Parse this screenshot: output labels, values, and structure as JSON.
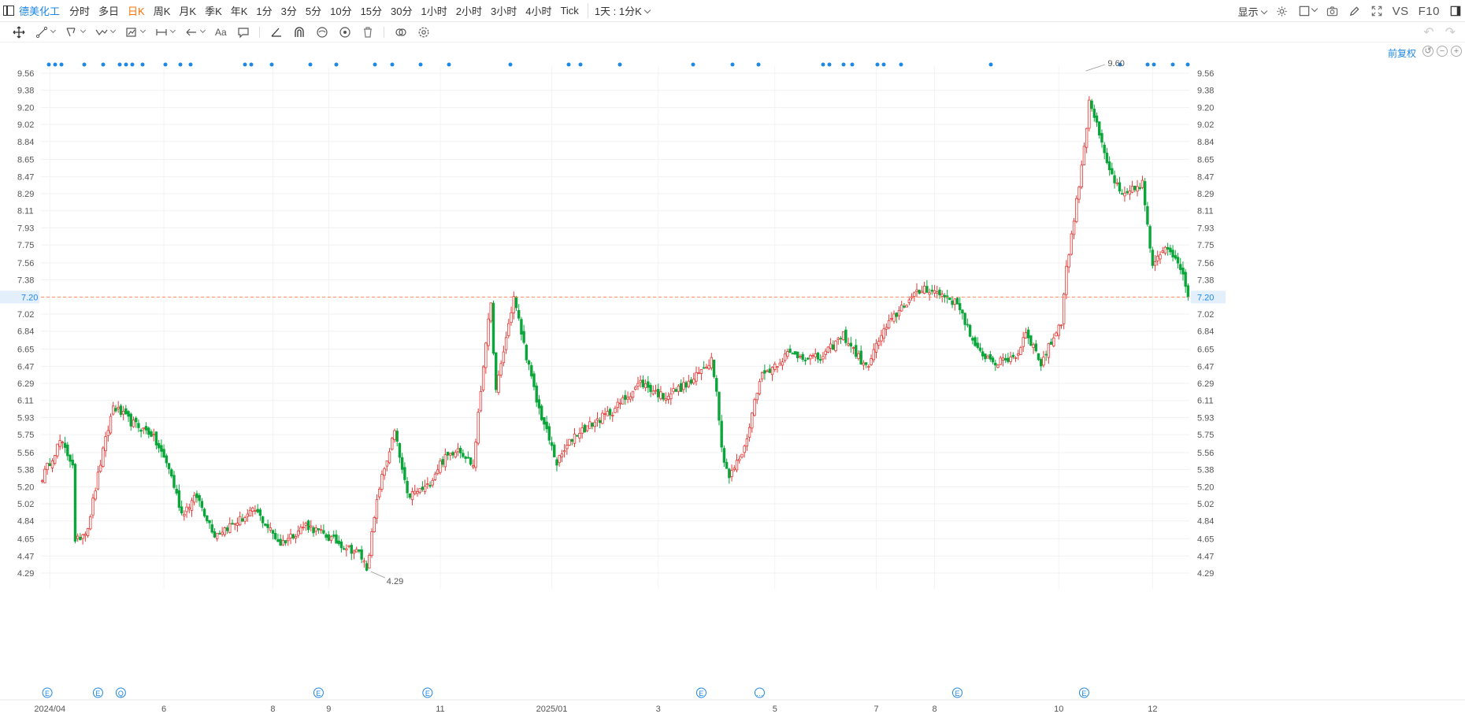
{
  "topbar": {
    "stock_name": "德美化工",
    "period_tabs": [
      "分时",
      "多日",
      "日K",
      "周K",
      "月K",
      "季K",
      "年K",
      "1分",
      "3分",
      "5分",
      "10分",
      "15分",
      "30分",
      "1小时",
      "2小时",
      "3小时",
      "4小时",
      "Tick"
    ],
    "active_tab": "日K",
    "interval_select": "1天 : 1分K",
    "display_label": "显示",
    "vs_label": "VS",
    "f10_label": "F10"
  },
  "adjust_label": "前复权",
  "colors": {
    "up": "#e53935",
    "down": "#0aa63a",
    "accent": "#1e88e5",
    "price_line": "#ff8a65",
    "active_tab": "#ff6f00"
  },
  "chart_data": {
    "type": "candlestick",
    "y_ticks": [
      "9.56",
      "9.38",
      "9.20",
      "9.02",
      "8.84",
      "8.65",
      "8.47",
      "8.29",
      "8.11",
      "7.93",
      "7.75",
      "7.56",
      "7.38",
      "7.20",
      "7.02",
      "6.84",
      "6.65",
      "6.47",
      "6.29",
      "6.11",
      "5.93",
      "5.75",
      "5.56",
      "5.38",
      "5.20",
      "5.02",
      "4.84",
      "4.65",
      "4.47",
      "4.29"
    ],
    "ylim": [
      4.17,
      9.72
    ],
    "x_ticks": [
      "2024/04",
      "6",
      "8",
      "9",
      "11",
      "2025/01",
      "3",
      "5",
      "7",
      "8",
      "10",
      "12"
    ],
    "current_price": "7.20",
    "max_label": "9.60",
    "min_label": "4.29",
    "event_markers": [
      "E",
      "E",
      "Q",
      "E",
      "E",
      "E",
      "…",
      "E",
      "E"
    ],
    "anchors": [
      {
        "d": "2024-03-27",
        "c": 5.3
      },
      {
        "d": "2024-04-05",
        "c": 5.68
      },
      {
        "d": "2024-04-12",
        "c": 5.45
      },
      {
        "d": "2024-04-15",
        "c": 4.6
      },
      {
        "d": "2024-04-22",
        "c": 4.78
      },
      {
        "d": "2024-04-29",
        "c": 5.45
      },
      {
        "d": "2024-05-06",
        "c": 6.05
      },
      {
        "d": "2024-05-15",
        "c": 5.88
      },
      {
        "d": "2024-05-27",
        "c": 5.76
      },
      {
        "d": "2024-06-05",
        "c": 5.4
      },
      {
        "d": "2024-06-12",
        "c": 4.92
      },
      {
        "d": "2024-06-20",
        "c": 5.1
      },
      {
        "d": "2024-07-01",
        "c": 4.7
      },
      {
        "d": "2024-07-15",
        "c": 4.85
      },
      {
        "d": "2024-07-23",
        "c": 4.95
      },
      {
        "d": "2024-08-06",
        "c": 4.6
      },
      {
        "d": "2024-08-20",
        "c": 4.8
      },
      {
        "d": "2024-09-05",
        "c": 4.62
      },
      {
        "d": "2024-09-18",
        "c": 4.5
      },
      {
        "d": "2024-09-23",
        "c": 4.35
      },
      {
        "d": "2024-09-30",
        "c": 5.2
      },
      {
        "d": "2024-10-08",
        "c": 5.78
      },
      {
        "d": "2024-10-15",
        "c": 5.1
      },
      {
        "d": "2024-10-25",
        "c": 5.2
      },
      {
        "d": "2024-11-01",
        "c": 5.45
      },
      {
        "d": "2024-11-12",
        "c": 5.62
      },
      {
        "d": "2024-11-20",
        "c": 5.42
      },
      {
        "d": "2024-11-27",
        "c": 6.75
      },
      {
        "d": "2024-11-29",
        "c": 7.1
      },
      {
        "d": "2024-12-03",
        "c": 6.2
      },
      {
        "d": "2024-12-12",
        "c": 7.2
      },
      {
        "d": "2024-12-18",
        "c": 6.7
      },
      {
        "d": "2024-12-25",
        "c": 6.1
      },
      {
        "d": "2025-01-06",
        "c": 5.45
      },
      {
        "d": "2025-01-15",
        "c": 5.75
      },
      {
        "d": "2025-02-05",
        "c": 6.0
      },
      {
        "d": "2025-02-20",
        "c": 6.3
      },
      {
        "d": "2025-03-05",
        "c": 6.15
      },
      {
        "d": "2025-03-20",
        "c": 6.3
      },
      {
        "d": "2025-04-01",
        "c": 6.55
      },
      {
        "d": "2025-04-03",
        "c": 6.25
      },
      {
        "d": "2025-04-07",
        "c": 5.6
      },
      {
        "d": "2025-04-10",
        "c": 5.3
      },
      {
        "d": "2025-04-18",
        "c": 5.6
      },
      {
        "d": "2025-04-28",
        "c": 6.35
      },
      {
        "d": "2025-05-13",
        "c": 6.6
      },
      {
        "d": "2025-05-30",
        "c": 6.55
      },
      {
        "d": "2025-06-12",
        "c": 6.8
      },
      {
        "d": "2025-06-25",
        "c": 6.45
      },
      {
        "d": "2025-07-03",
        "c": 6.8
      },
      {
        "d": "2025-07-15",
        "c": 7.1
      },
      {
        "d": "2025-07-28",
        "c": 7.3
      },
      {
        "d": "2025-08-08",
        "c": 7.2
      },
      {
        "d": "2025-08-15",
        "c": 7.1
      },
      {
        "d": "2025-08-25",
        "c": 6.65
      },
      {
        "d": "2025-09-05",
        "c": 6.5
      },
      {
        "d": "2025-09-17",
        "c": 6.6
      },
      {
        "d": "2025-09-22",
        "c": 6.85
      },
      {
        "d": "2025-09-30",
        "c": 6.5
      },
      {
        "d": "2025-10-10",
        "c": 6.95
      },
      {
        "d": "2025-10-14",
        "c": 7.5
      },
      {
        "d": "2025-10-20",
        "c": 8.2
      },
      {
        "d": "2025-10-24",
        "c": 9.0
      },
      {
        "d": "2025-10-27",
        "c": 9.3
      },
      {
        "d": "2025-11-05",
        "c": 8.6
      },
      {
        "d": "2025-11-13",
        "c": 8.25
      },
      {
        "d": "2025-11-25",
        "c": 8.4
      },
      {
        "d": "2025-12-01",
        "c": 7.5
      },
      {
        "d": "2025-12-08",
        "c": 7.75
      },
      {
        "d": "2025-12-15",
        "c": 7.6
      },
      {
        "d": "2025-12-19",
        "c": 7.2
      }
    ],
    "x_tick_dates": [
      "2024-04-01",
      "2024-06-03",
      "2024-08-01",
      "2024-09-02",
      "2024-11-01",
      "2025-01-02",
      "2025-03-03",
      "2025-05-06",
      "2025-07-01",
      "2025-08-01",
      "2025-10-09",
      "2025-12-01"
    ],
    "event_marker_dates": [
      "2024-03-29",
      "2024-04-26",
      "2024-05-09",
      "2024-08-27",
      "2024-10-25",
      "2025-03-26",
      "2025-04-28",
      "2025-08-14",
      "2025-10-23"
    ],
    "max_date": "2025-10-23",
    "min_date": "2024-09-24"
  }
}
